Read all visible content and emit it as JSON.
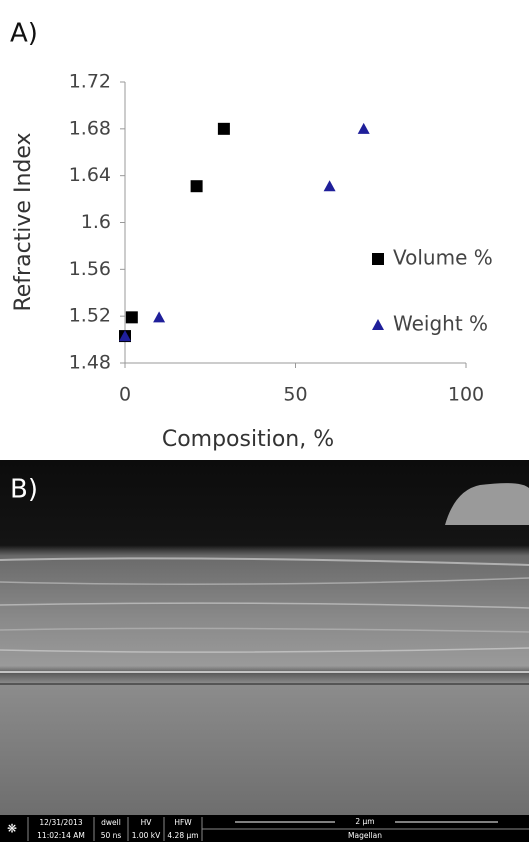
{
  "panel_a_label": "A)",
  "panel_b_label": "B)",
  "chart_data": {
    "type": "scatter",
    "xlabel": "Composition, %",
    "ylabel": "Refractive Index",
    "xlim": [
      0,
      100
    ],
    "xticks": [
      0,
      50,
      100
    ],
    "ylim": [
      1.48,
      1.72
    ],
    "yticks": [
      1.48,
      1.52,
      1.56,
      1.6,
      1.64,
      1.68,
      1.72
    ],
    "grid": false,
    "legend": "right",
    "series": [
      {
        "name": "Volume %",
        "color": "#000000",
        "marker": "square",
        "x": [
          0,
          2,
          21,
          29
        ],
        "values": [
          1.503,
          1.519,
          1.631,
          1.68
        ]
      },
      {
        "name": "Weight %",
        "color": "#1f1f9a",
        "marker": "triangle",
        "x": [
          0,
          10,
          60,
          70
        ],
        "values": [
          1.503,
          1.519,
          1.631,
          1.68
        ]
      }
    ]
  },
  "sem_info_bar": {
    "date": "12/31/2013",
    "time": "11:02:14 AM",
    "dwell_label": "dwell",
    "dwell": "50 ns",
    "hv_label": "HV",
    "hv": "1.00 kV",
    "hfw_label": "HFW",
    "hfw": "4.28 µm",
    "scale": "2 µm",
    "instrument": "Magellan"
  }
}
